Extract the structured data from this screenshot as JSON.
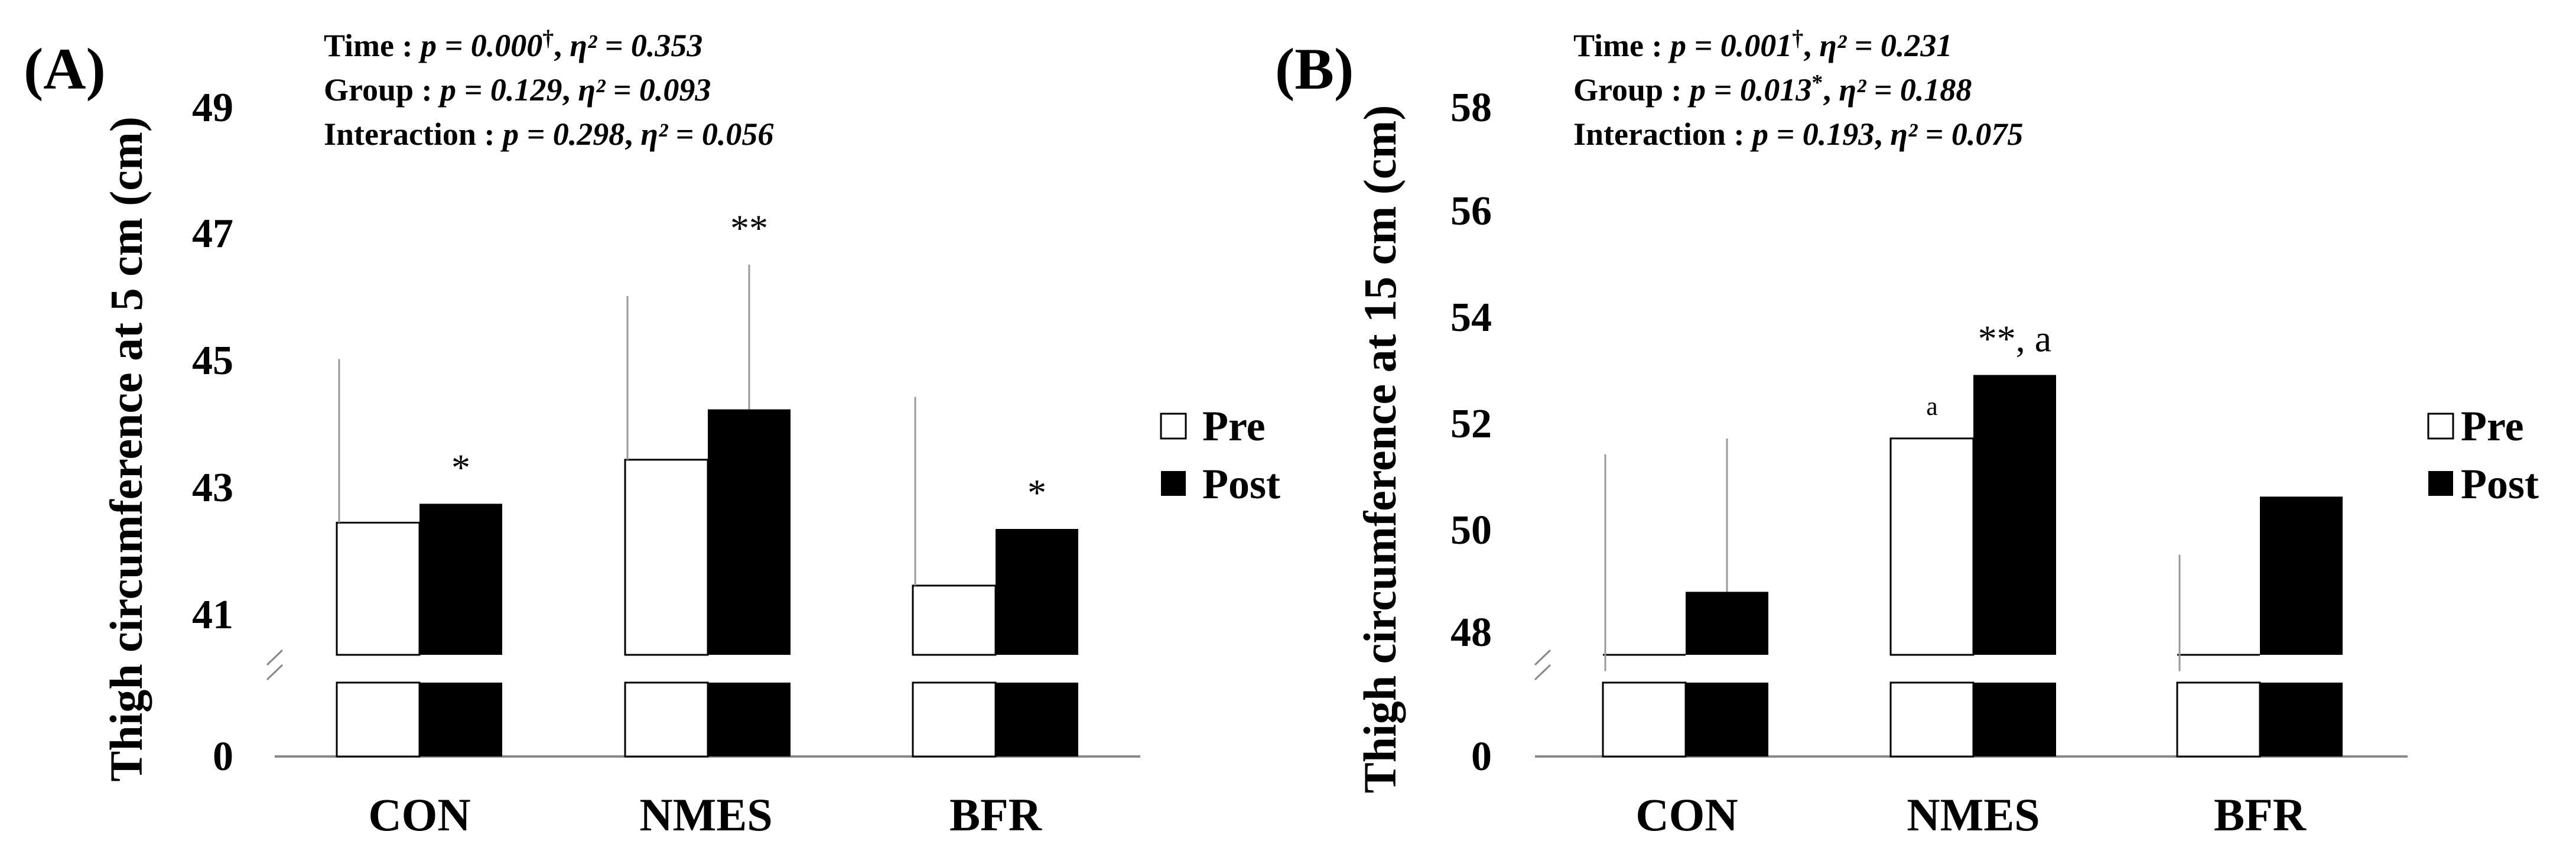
{
  "chart_data": [
    {
      "type": "bar",
      "panel_label": "(A)",
      "ylabel": "Thigh circumference at 5 cm (cm)",
      "categories": [
        "CON",
        "NMES",
        "BFR"
      ],
      "ylim": [
        40,
        49
      ],
      "yticks": [
        "49",
        "47",
        "45",
        "43",
        "41",
        "0"
      ],
      "axis_break": true,
      "series": [
        {
          "name": "Pre",
          "color": "#ffffff",
          "values": [
            42.6,
            43.6,
            41.6
          ],
          "errors": [
            2.6,
            2.6,
            3.0
          ]
        },
        {
          "name": "Post",
          "color": "#000000",
          "values": [
            42.9,
            44.4,
            42.5
          ],
          "errors": [
            0.0,
            2.3,
            0.0
          ]
        }
      ],
      "significance": [
        {
          "category": "CON",
          "series": "Post",
          "mark": "*"
        },
        {
          "category": "NMES",
          "series": "Post",
          "mark": "**"
        },
        {
          "category": "BFR",
          "series": "Post",
          "mark": "*"
        }
      ],
      "stats": [
        {
          "label": "Time : ",
          "p": "p = 0.000",
          "dagger": "†",
          "eta": "η² = 0.353"
        },
        {
          "label": "Group : ",
          "p": "p = 0.129",
          "dagger": "",
          "eta": "η² = 0.093"
        },
        {
          "label": "Interaction : ",
          "p": "p = 0.298",
          "dagger": "",
          "eta": "η² = 0.056"
        }
      ],
      "legend": [
        "Pre",
        "Post"
      ]
    },
    {
      "type": "bar",
      "panel_label": "(B)",
      "ylabel": "Thigh circumference at 15 cm (cm)",
      "categories": [
        "CON",
        "NMES",
        "BFR"
      ],
      "ylim": [
        47.3,
        58
      ],
      "yticks": [
        "58",
        "56",
        "54",
        "52",
        "50",
        "48",
        "0"
      ],
      "axis_break": true,
      "series": [
        {
          "name": "Pre",
          "color": "#ffffff",
          "values": [
            47.3,
            51.7,
            47.3
          ],
          "errors": [
            4.1,
            0.0,
            2.2
          ]
        },
        {
          "name": "Post",
          "color": "#000000",
          "values": [
            48.8,
            52.9,
            50.6
          ],
          "errors": [
            2.9,
            0.0,
            0.0
          ]
        }
      ],
      "significance": [
        {
          "category": "NMES",
          "series": "Pre",
          "mark": "a"
        },
        {
          "category": "NMES",
          "series": "Post",
          "mark": "**, a"
        }
      ],
      "stats": [
        {
          "label": "Time : ",
          "p": "p = 0.001",
          "dagger": "†",
          "eta": "η² = 0.231"
        },
        {
          "label": "Group : ",
          "p": "p = 0.013",
          "dagger": "*",
          "eta": "η² = 0.188"
        },
        {
          "label": "Interaction : ",
          "p": "p = 0.193",
          "dagger": "",
          "eta": "η² = 0.075"
        }
      ],
      "legend": [
        "Pre",
        "Post"
      ]
    }
  ]
}
